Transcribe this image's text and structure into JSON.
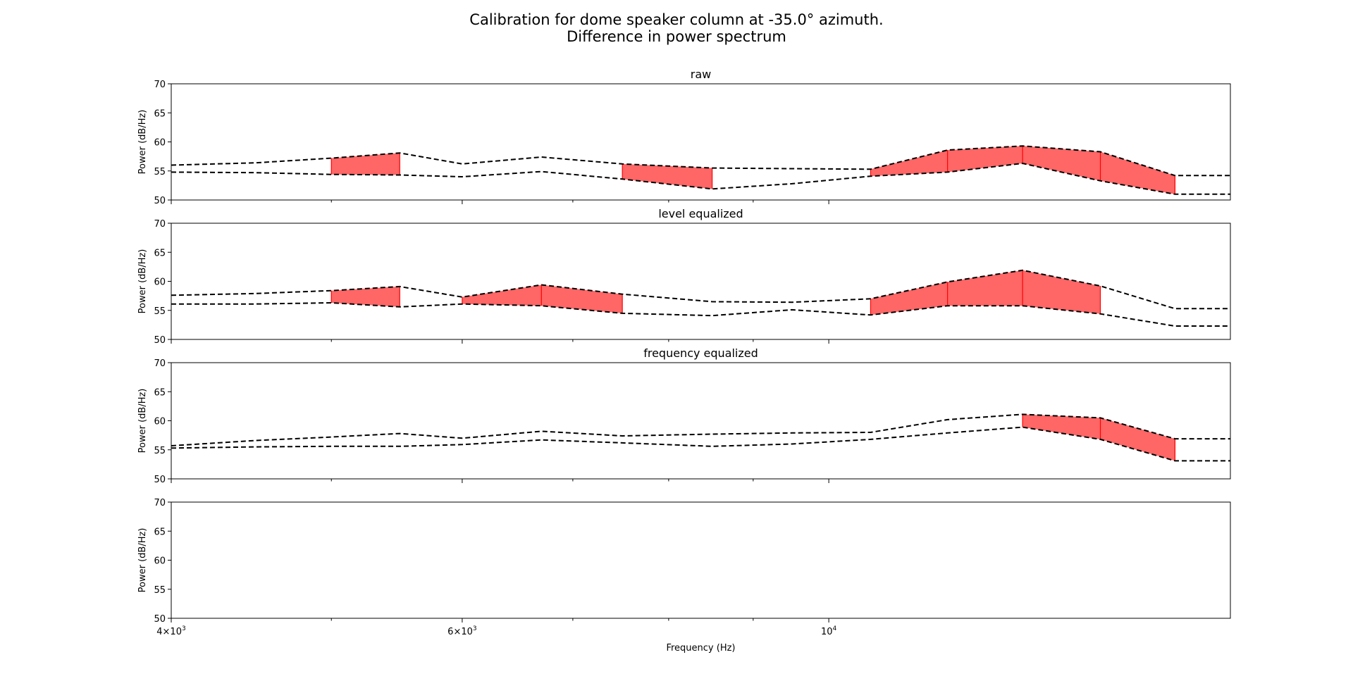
{
  "figure": {
    "title_line1": "Calibration for dome speaker column at -35.0° azimuth.",
    "title_line2": "Difference in power spectrum",
    "xlabel": "Frequency (Hz)"
  },
  "chart_data": {
    "type": "line",
    "x_scale": "log",
    "xlim": [
      4000,
      17500
    ],
    "x_ticks": [
      {
        "value": 4000,
        "base": "4×10",
        "exp": "3"
      },
      {
        "value": 6000,
        "base": "6×10",
        "exp": "3"
      },
      {
        "value": 10000,
        "base": "10",
        "exp": "4"
      }
    ],
    "x_minor_ticks": [
      5000,
      7000,
      8000,
      9000
    ],
    "line_style": "dashed",
    "line_color": "#000000",
    "fill_color": "#ff6666",
    "fill_edge_color": "#ff0000",
    "panels": [
      {
        "title": "raw",
        "ylabel": "Power (dB/Hz)",
        "ylim": [
          50,
          70
        ],
        "yticks": [
          50,
          55,
          60,
          65,
          70
        ],
        "x": [
          4000,
          4500,
          5000,
          5500,
          6000,
          6700,
          7500,
          8500,
          9500,
          10600,
          11800,
          13100,
          14600,
          16200,
          17500
        ],
        "upper": [
          56.0,
          56.4,
          57.2,
          58.1,
          56.2,
          57.4,
          56.2,
          55.5,
          55.4,
          55.3,
          58.6,
          59.3,
          58.3,
          54.2,
          54.2
        ],
        "lower": [
          54.8,
          54.7,
          54.4,
          54.3,
          54.0,
          54.9,
          53.6,
          51.9,
          52.8,
          54.1,
          54.8,
          56.3,
          53.3,
          51.0,
          51.0
        ],
        "filled_ranges": [
          [
            5000,
            5500
          ],
          [
            7500,
            8500
          ],
          [
            10600,
            16200
          ]
        ]
      },
      {
        "title": "level equalized",
        "ylabel": "Power (dB/Hz)",
        "ylim": [
          50,
          70
        ],
        "yticks": [
          50,
          55,
          60,
          65,
          70
        ],
        "x": [
          4000,
          4500,
          5000,
          5500,
          6000,
          6700,
          7500,
          8500,
          9500,
          10600,
          11800,
          13100,
          14600,
          16200,
          17500
        ],
        "upper": [
          57.6,
          57.9,
          58.4,
          59.1,
          57.3,
          59.4,
          57.8,
          56.5,
          56.4,
          57.0,
          59.9,
          61.9,
          59.2,
          55.3,
          55.3
        ],
        "lower": [
          56.1,
          56.1,
          56.3,
          55.6,
          56.1,
          55.8,
          54.5,
          54.1,
          55.1,
          54.2,
          55.8,
          55.8,
          54.4,
          52.3,
          52.3
        ],
        "filled_ranges": [
          [
            5000,
            5500
          ],
          [
            6000,
            7500
          ],
          [
            10600,
            14600
          ]
        ]
      },
      {
        "title": "frequency equalized",
        "ylabel": "Power (dB/Hz)",
        "ylim": [
          50,
          70
        ],
        "yticks": [
          50,
          55,
          60,
          65,
          70
        ],
        "x": [
          4000,
          4500,
          5000,
          5500,
          6000,
          6700,
          7500,
          8500,
          9500,
          10600,
          11800,
          13100,
          14600,
          16200,
          17500
        ],
        "upper": [
          55.7,
          56.6,
          57.2,
          57.8,
          57.0,
          58.2,
          57.4,
          57.7,
          57.9,
          58.0,
          60.2,
          61.1,
          60.5,
          56.9,
          56.9
        ],
        "lower": [
          55.3,
          55.5,
          55.6,
          55.6,
          55.9,
          56.7,
          56.2,
          55.6,
          56.0,
          56.8,
          57.9,
          58.9,
          56.8,
          53.1,
          53.1
        ],
        "filled_ranges": [
          [
            13100,
            16200
          ]
        ]
      },
      {
        "title": "",
        "ylabel": "Power (dB/Hz)",
        "ylim": [
          50,
          70
        ],
        "yticks": [
          50,
          55,
          60,
          65,
          70
        ],
        "x": [],
        "upper": [],
        "lower": [],
        "filled_ranges": []
      }
    ]
  }
}
